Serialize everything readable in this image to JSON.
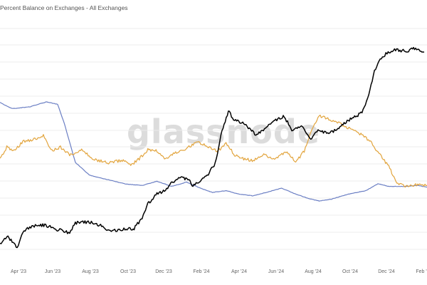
{
  "title": "Percent Balance on Exchanges - All Exchanges",
  "watermark": "glassnode",
  "colors": {
    "price": "#000000",
    "balance_blue": "#6b7fc4",
    "balance_orange": "#e2a43c",
    "grid": "#ececec"
  },
  "chart_data": {
    "type": "line",
    "title": "Percent Balance on Exchanges - All Exchanges",
    "xlabel": "",
    "ylabel": "",
    "grid": true,
    "x_ticks": [
      "Apr '23",
      "Jun '23",
      "Aug '23",
      "Oct '23",
      "Dec '23",
      "Feb '24",
      "Apr '24",
      "Jun '24",
      "Aug '24",
      "Oct '24",
      "Dec '24",
      "Feb '"
    ],
    "x_range": [
      "2023-02-08",
      "2025-02-25"
    ],
    "series": [
      {
        "color": "#000000",
        "x": [
          "2023-02-08",
          "2023-02-20",
          "2023-03-05",
          "2023-03-10",
          "2023-03-20",
          "2023-04-01",
          "2023-04-15",
          "2023-05-01",
          "2023-05-20",
          "2023-06-10",
          "2023-06-20",
          "2023-07-05",
          "2023-07-20",
          "2023-08-05",
          "2023-08-18",
          "2023-09-01",
          "2023-09-15",
          "2023-10-01",
          "2023-10-15",
          "2023-10-25",
          "2023-11-10",
          "2023-11-25",
          "2023-12-08",
          "2023-12-20",
          "2024-01-05",
          "2024-01-12",
          "2024-01-25",
          "2024-02-08",
          "2024-02-20",
          "2024-03-01",
          "2024-03-14",
          "2024-03-25",
          "2024-04-10",
          "2024-04-20",
          "2024-05-01",
          "2024-05-20",
          "2024-06-05",
          "2024-06-20",
          "2024-07-05",
          "2024-07-20",
          "2024-08-05",
          "2024-08-20",
          "2024-09-06",
          "2024-09-20",
          "2024-10-10",
          "2024-10-25",
          "2024-11-05",
          "2024-11-15",
          "2024-11-25",
          "2024-12-05",
          "2024-12-17",
          "2025-01-01",
          "2025-01-20",
          "2025-02-05",
          "2025-02-20"
        ],
        "y": [
          20.5,
          22.2,
          20.8,
          19.8,
          23.2,
          24.2,
          24.8,
          24.6,
          23.7,
          23.0,
          25.2,
          25.4,
          25.2,
          24.5,
          23.5,
          23.6,
          23.9,
          23.9,
          26.4,
          29.4,
          31.5,
          32.4,
          34.2,
          35.3,
          34.6,
          33.2,
          34.6,
          35.8,
          38.3,
          44.3,
          49.8,
          47.6,
          47.2,
          45.8,
          44.5,
          46.2,
          47.8,
          48.5,
          45.2,
          46.6,
          43.6,
          45.6,
          44.7,
          45.6,
          47.6,
          48.6,
          49.8,
          53.4,
          58.4,
          61.3,
          62.4,
          63.2,
          62.8,
          63.5,
          62.6
        ]
      },
      {
        "color": "#6b7fc4",
        "x": [
          "2023-02-08",
          "2023-03-01",
          "2023-04-01",
          "2023-05-01",
          "2023-05-20",
          "2023-06-01",
          "2023-06-20",
          "2023-07-15",
          "2023-08-15",
          "2023-09-15",
          "2023-10-15",
          "2023-11-10",
          "2023-12-05",
          "2024-01-01",
          "2024-01-25",
          "2024-02-15",
          "2024-03-10",
          "2024-04-01",
          "2024-04-25",
          "2024-05-20",
          "2024-06-15",
          "2024-07-10",
          "2024-08-01",
          "2024-08-20",
          "2024-09-10",
          "2024-10-10",
          "2024-11-10",
          "2024-12-01",
          "2024-12-20",
          "2025-01-15",
          "2025-02-10",
          "2025-02-25"
        ],
        "y": [
          15.55,
          15.48,
          15.5,
          15.56,
          15.53,
          15.3,
          14.85,
          14.7,
          14.65,
          14.6,
          14.58,
          14.63,
          14.57,
          14.62,
          14.55,
          14.5,
          14.52,
          14.48,
          14.46,
          14.5,
          14.55,
          14.48,
          14.43,
          14.4,
          14.42,
          14.48,
          14.52,
          14.6,
          14.57,
          14.57,
          14.58,
          14.56
        ]
      },
      {
        "color": "#e2a43c",
        "x": [
          "2023-02-08",
          "2023-02-20",
          "2023-03-05",
          "2023-03-20",
          "2023-04-10",
          "2023-04-25",
          "2023-05-10",
          "2023-05-25",
          "2023-06-10",
          "2023-07-01",
          "2023-07-20",
          "2023-08-15",
          "2023-09-10",
          "2023-09-25",
          "2023-10-10",
          "2023-10-25",
          "2023-11-10",
          "2023-11-25",
          "2023-12-05",
          "2023-12-20",
          "2024-01-05",
          "2024-01-20",
          "2024-02-08",
          "2024-02-25",
          "2024-03-10",
          "2024-03-25",
          "2024-04-10",
          "2024-04-25",
          "2024-05-15",
          "2024-06-05",
          "2024-06-25",
          "2024-07-10",
          "2024-07-25",
          "2024-08-08",
          "2024-08-20",
          "2024-09-10",
          "2024-09-25",
          "2024-10-15",
          "2024-11-05",
          "2024-11-20",
          "2024-12-05",
          "2024-12-20",
          "2025-01-05",
          "2025-01-20",
          "2025-02-05",
          "2025-02-25"
        ],
        "y": [
          2.5,
          2.65,
          2.6,
          2.72,
          2.75,
          2.8,
          2.6,
          2.65,
          2.55,
          2.62,
          2.5,
          2.45,
          2.48,
          2.42,
          2.5,
          2.62,
          2.6,
          2.5,
          2.55,
          2.6,
          2.65,
          2.72,
          2.65,
          2.6,
          2.7,
          2.55,
          2.5,
          2.48,
          2.55,
          2.5,
          2.6,
          2.45,
          2.6,
          2.9,
          3.05,
          3.0,
          2.95,
          2.88,
          2.8,
          2.7,
          2.55,
          2.4,
          2.18,
          2.15,
          2.17,
          2.16
        ]
      }
    ]
  }
}
